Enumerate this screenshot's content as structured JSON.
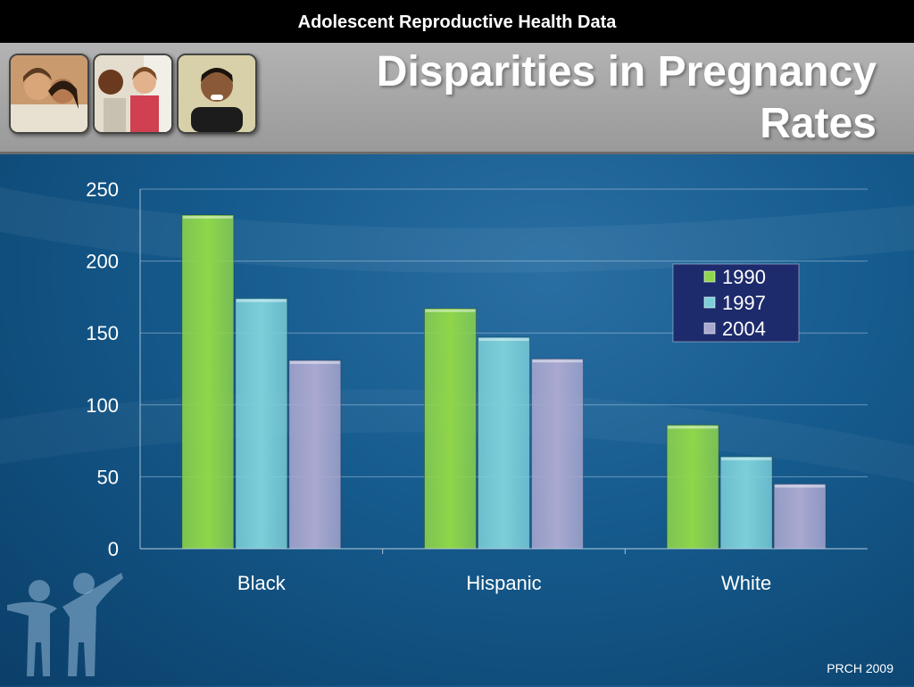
{
  "topbar": {
    "title": "Adolescent Reproductive Health Data"
  },
  "header": {
    "title": "Disparities in Pregnancy Rates"
  },
  "footer": {
    "text": "PRCH 2009"
  },
  "colors": {
    "background": "#155a8c",
    "header": "#a8a8a8",
    "legend_bg": "#1d2a6b"
  },
  "icons": [
    "teen-couple-photo",
    "teens-photo",
    "teen-boy-photo",
    "family-logo-icon"
  ],
  "chart_data": {
    "type": "bar",
    "categories": [
      "Black",
      "Hispanic",
      "White"
    ],
    "series": [
      {
        "name": "1990",
        "values": [
          232,
          167,
          86
        ],
        "color": "#8fd64a"
      },
      {
        "name": "1997",
        "values": [
          174,
          147,
          64
        ],
        "color": "#7ccfd9"
      },
      {
        "name": "2004",
        "values": [
          131,
          132,
          45
        ],
        "color": "#a9a8d0"
      }
    ],
    "ylim": [
      0,
      250
    ],
    "yticks": [
      0,
      50,
      100,
      150,
      200,
      250
    ],
    "grid": true,
    "legend": "top-right",
    "title": "",
    "xlabel": "",
    "ylabel": ""
  }
}
